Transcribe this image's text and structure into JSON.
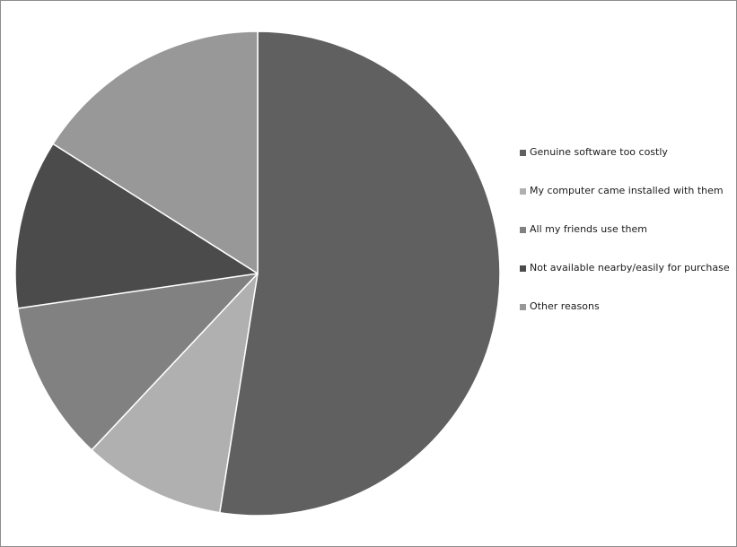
{
  "chart_data": {
    "type": "pie",
    "title": "",
    "slices": [
      {
        "label": "Genuine software  too costly",
        "value": 52.5,
        "color": "#606060"
      },
      {
        "label": "My computer  came installed with  them",
        "value": 9.5,
        "color": "#b0b0b0"
      },
      {
        "label": "All my friends use them",
        "value": 10.7,
        "color": "#818181"
      },
      {
        "label": "Not  available  nearby/easily for purchase",
        "value": 11.3,
        "color": "#4b4b4b"
      },
      {
        "label": "Other reasons",
        "value": 16.0,
        "color": "#989898"
      }
    ],
    "legend": {
      "position": "right"
    },
    "start_angle_deg": 0,
    "direction": "clockwise"
  }
}
